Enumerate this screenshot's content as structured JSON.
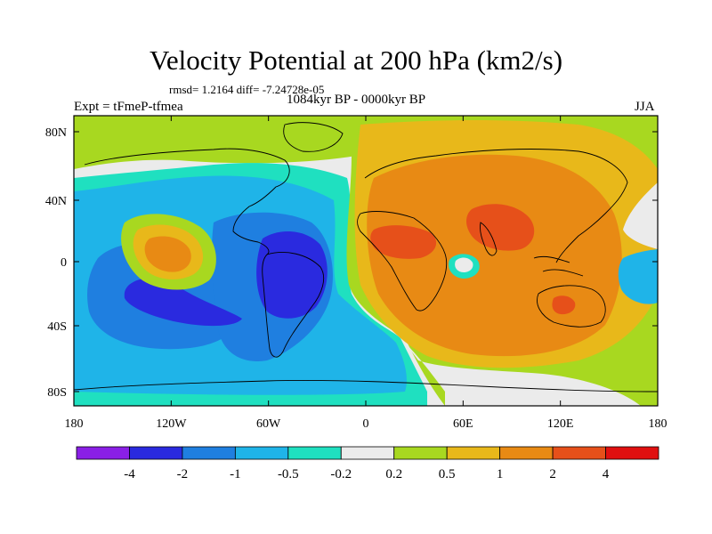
{
  "header": {
    "title": "Velocity Potential at 200 hPa (km2/s)",
    "stats": "rmsd= 1.2164 diff= -7.24728e-05",
    "left_label": "Expt = tFmeP-tfmea",
    "center_label": "1084kyr BP - 0000kyr BP",
    "right_label": "JJA"
  },
  "axes": {
    "x_ticks": [
      "180",
      "120W",
      "60W",
      "0",
      "60E",
      "120E",
      "180"
    ],
    "y_ticks": [
      "80N",
      "40N",
      "0",
      "40S",
      "80S"
    ]
  },
  "colorbar": {
    "colors": [
      "#8a1fe6",
      "#2a2adf",
      "#1f7fe0",
      "#1fb4e8",
      "#1fe0c0",
      "#ebebeb",
      "#a8d820",
      "#e8b81a",
      "#e88a14",
      "#e6501a",
      "#e01010"
    ],
    "labels": [
      "-4",
      "-2",
      "-1",
      "-0.5",
      "-0.2",
      "0.2",
      "0.5",
      "1",
      "2",
      "4"
    ]
  },
  "field_palette": {
    "neg_strong": "#2a2adf",
    "neg": "#1f7fe0",
    "neg_weak": "#1fb4e8",
    "neg_faint": "#1fe0c0",
    "neutral": "#ebebeb",
    "pos_faint": "#a8d820",
    "pos_weak": "#e8b81a",
    "pos": "#e88a14",
    "pos_strong": "#e6501a"
  }
}
